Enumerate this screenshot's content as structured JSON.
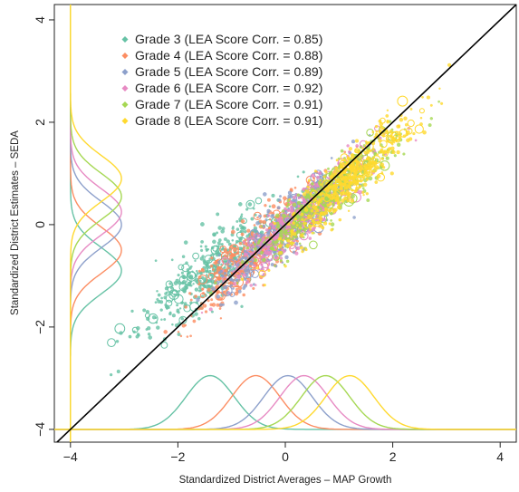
{
  "chart_data": {
    "type": "scatter",
    "title": "",
    "xlabel": "Standardized District Averages – MAP Growth",
    "ylabel": "Standardized District Estimates – SEDA",
    "xlim": [
      -4.3,
      4.3
    ],
    "ylim": [
      -4.25,
      4.3
    ],
    "xticks": [
      -4,
      -2,
      0,
      2,
      4
    ],
    "yticks": [
      -4,
      -2,
      0,
      2,
      4
    ],
    "grid": false,
    "legend_position": "top-left",
    "reference_line": {
      "slope": 1,
      "intercept": 0,
      "color": "#000000"
    },
    "series": [
      {
        "name": "Grade 3 (LEA Score Corr. = 0.85)",
        "color": "#66c2a5",
        "correlation": 0.85,
        "x_mean": -1.4,
        "y_mean": -0.9,
        "sd": 0.45
      },
      {
        "name": "Grade 4 (LEA Score Corr. = 0.88)",
        "color": "#fc8d62",
        "correlation": 0.88,
        "x_mean": -0.55,
        "y_mean": -0.5,
        "sd": 0.45
      },
      {
        "name": "Grade 5 (LEA Score Corr. = 0.89)",
        "color": "#8da0cb",
        "correlation": 0.89,
        "x_mean": 0.05,
        "y_mean": 0.0,
        "sd": 0.45
      },
      {
        "name": "Grade 6 (LEA Score Corr. = 0.92)",
        "color": "#e78ac3",
        "correlation": 0.92,
        "x_mean": 0.35,
        "y_mean": 0.25,
        "sd": 0.45
      },
      {
        "name": "Grade 7 (LEA Score Corr. = 0.91)",
        "color": "#a6d854",
        "correlation": 0.91,
        "x_mean": 0.75,
        "y_mean": 0.55,
        "sd": 0.45
      },
      {
        "name": "Grade 8 (LEA Score Corr. = 0.91)",
        "color": "#ffd92f",
        "correlation": 0.91,
        "x_mean": 1.2,
        "y_mean": 0.9,
        "sd": 0.45
      }
    ]
  }
}
